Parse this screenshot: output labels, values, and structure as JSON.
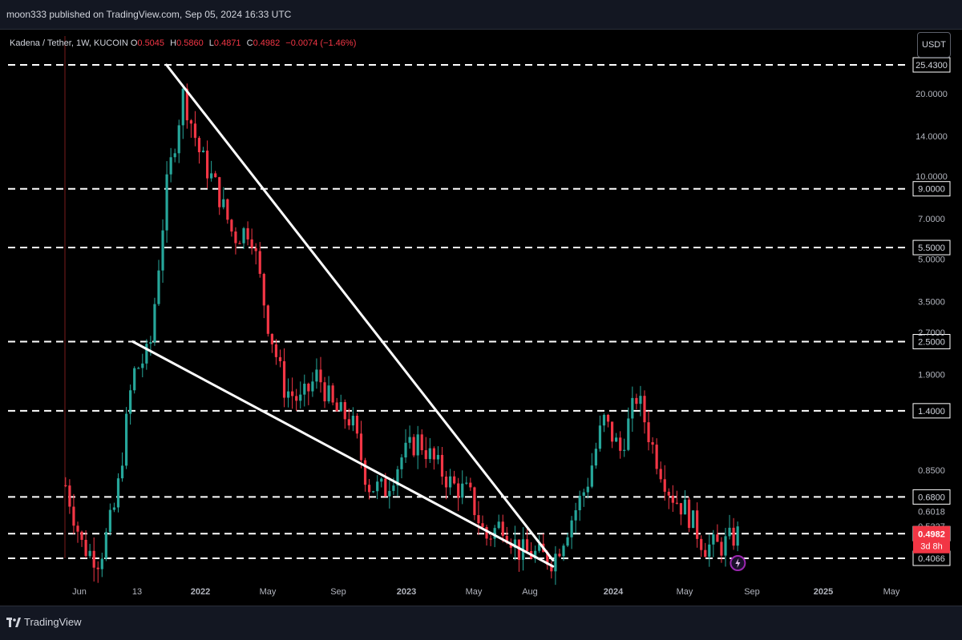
{
  "header": {
    "published_text": "moon333 published on TradingView.com, Sep 05, 2024 16:33 UTC"
  },
  "legend": {
    "symbol": "Kadena / Tether, 1W, KUCOIN",
    "open_label": "O",
    "open": "0.5045",
    "high_label": "H",
    "high": "0.5860",
    "low_label": "L",
    "low": "0.4871",
    "close_label": "C",
    "close": "0.4982",
    "change": "−0.0074 (−1.46%)"
  },
  "currency_button": "USDT",
  "footer": {
    "brand": "TradingView"
  },
  "colors": {
    "up": "#26a69a",
    "down": "#f23645",
    "background": "#000000",
    "countdown_bg": "#f23645"
  },
  "chart_data": {
    "type": "candlestick",
    "symbol": "Kadena / Tether",
    "interval": "1W",
    "exchange": "KUCOIN",
    "y_scale": "log",
    "y_tick_labels": [
      "20.0000",
      "14.0000",
      "10.0000",
      "7.0000",
      "5.0000",
      "3.5000",
      "2.7000",
      "1.9000",
      "0.8500",
      "0.6018",
      "0.5327"
    ],
    "x_tick_labels": [
      "Jun",
      "13",
      "2022",
      "May",
      "Sep",
      "2023",
      "May",
      "Aug",
      "2024",
      "May",
      "Sep",
      "2025",
      "May"
    ],
    "horizontal_levels": [
      "25.4300",
      "9.0000",
      "5.5000",
      "2.5000",
      "1.4000",
      "0.6800",
      "0.5000",
      "0.4066"
    ],
    "current_price_label": "0.4982",
    "countdown": "3d 8h",
    "grid": false,
    "trendlines": [
      {
        "name": "upper",
        "from": [
          "2021-11",
          25.43
        ],
        "to": [
          "2023-10",
          0.4
        ]
      },
      {
        "name": "lower",
        "from": [
          "2021-09",
          2.5
        ],
        "to": [
          "2023-10",
          0.38
        ]
      }
    ],
    "series": [
      {
        "name": "price",
        "points": [
          [
            "2021-05",
            0.75
          ],
          [
            "2021-06",
            0.45
          ],
          [
            "2021-07",
            0.4
          ],
          [
            "2021-08",
            0.65
          ],
          [
            "2021-09",
            1.9
          ],
          [
            "2021-10",
            2.3
          ],
          [
            "2021-11",
            9.0
          ],
          [
            "2021-12",
            20.0
          ],
          [
            "2022-01",
            12.0
          ],
          [
            "2022-02",
            9.0
          ],
          [
            "2022-03",
            6.0
          ],
          [
            "2022-04",
            6.5
          ],
          [
            "2022-05",
            3.0
          ],
          [
            "2022-06",
            1.7
          ],
          [
            "2022-07",
            1.5
          ],
          [
            "2022-08",
            1.9
          ],
          [
            "2022-09",
            1.4
          ],
          [
            "2022-10",
            1.3
          ],
          [
            "2022-11",
            0.75
          ],
          [
            "2022-12",
            0.72
          ],
          [
            "2023-01",
            0.95
          ],
          [
            "2023-02",
            1.1
          ],
          [
            "2023-03",
            0.9
          ],
          [
            "2023-04",
            0.75
          ],
          [
            "2023-05",
            0.7
          ],
          [
            "2023-06",
            0.48
          ],
          [
            "2023-07",
            0.55
          ],
          [
            "2023-08",
            0.43
          ],
          [
            "2023-09",
            0.42
          ],
          [
            "2023-10",
            0.4
          ],
          [
            "2023-11",
            0.55
          ],
          [
            "2023-12",
            0.75
          ],
          [
            "2024-01",
            1.3
          ],
          [
            "2024-02",
            1.0
          ],
          [
            "2024-03",
            1.6
          ],
          [
            "2024-04",
            1.0
          ],
          [
            "2024-05",
            0.7
          ],
          [
            "2024-06",
            0.6
          ],
          [
            "2024-07",
            0.45
          ],
          [
            "2024-08",
            0.45
          ],
          [
            "2024-09",
            0.4982
          ]
        ]
      }
    ]
  }
}
